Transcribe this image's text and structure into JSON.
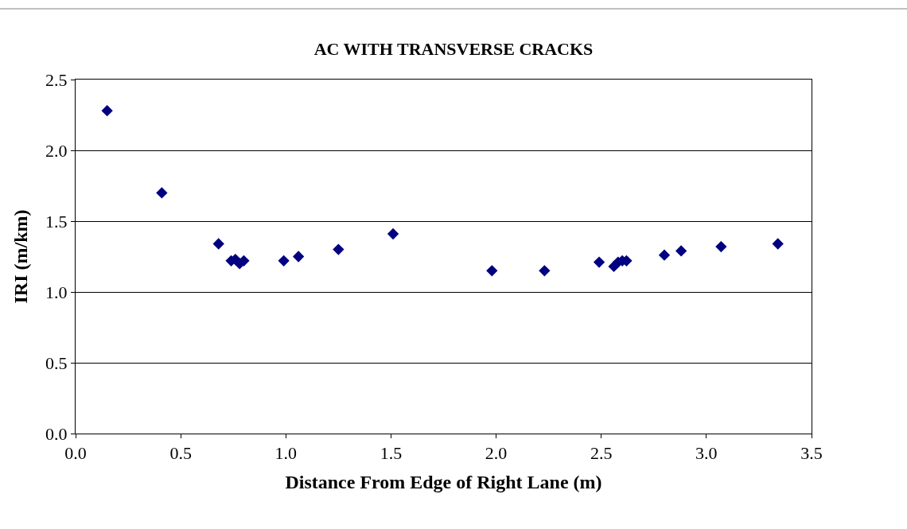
{
  "chart_data": {
    "type": "scatter",
    "title": "AC WITH TRANSVERSE CRACKS",
    "xlabel": "Distance From Edge of Right Lane (m)",
    "ylabel": "IRI (m/km)",
    "x": [
      0.15,
      0.41,
      0.68,
      0.74,
      0.76,
      0.78,
      0.8,
      0.99,
      1.06,
      1.25,
      1.51,
      1.98,
      2.23,
      2.49,
      2.56,
      2.58,
      2.6,
      2.62,
      2.8,
      2.88,
      3.07,
      3.34
    ],
    "series": [
      {
        "color": "#000080",
        "values": [
          2.28,
          1.7,
          1.34,
          1.22,
          1.23,
          1.2,
          1.22,
          1.22,
          1.25,
          1.3,
          1.41,
          1.15,
          1.15,
          1.21,
          1.18,
          1.21,
          1.22,
          1.22,
          1.26,
          1.29,
          1.32,
          1.34
        ]
      }
    ],
    "xlim": [
      0,
      3.5
    ],
    "ylim": [
      0,
      2.5
    ],
    "xticks": [
      {
        "value": 0,
        "label": "0.0"
      },
      {
        "value": 0.5,
        "label": "0.5"
      },
      {
        "value": 1,
        "label": "1.0"
      },
      {
        "value": 1.5,
        "label": "1.5"
      },
      {
        "value": 2,
        "label": "2.0"
      },
      {
        "value": 2.5,
        "label": "2.5"
      },
      {
        "value": 3,
        "label": "3.0"
      },
      {
        "value": 3.5,
        "label": "3.5"
      }
    ],
    "yticks": [
      {
        "value": 0,
        "label": "0.0"
      },
      {
        "value": 0.5,
        "label": "0.5"
      },
      {
        "value": 1,
        "label": "1.0"
      },
      {
        "value": 1.5,
        "label": "1.5"
      },
      {
        "value": 2,
        "label": "2.0"
      },
      {
        "value": 2.5,
        "label": "2.5"
      }
    ],
    "grid": "y",
    "marker": "diamond",
    "legend": false
  }
}
